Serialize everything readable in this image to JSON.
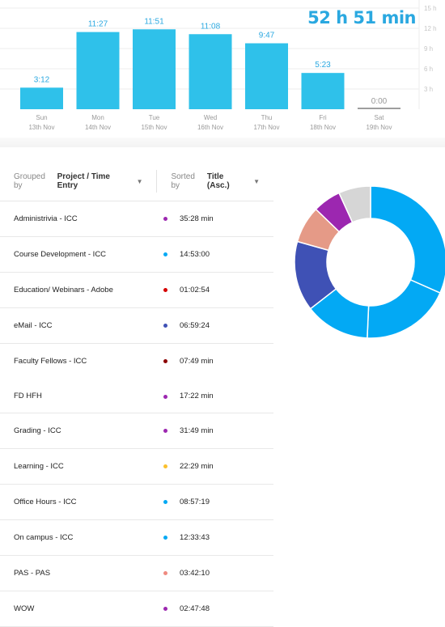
{
  "summary": {
    "total": "52 h 51 min"
  },
  "chart_data": {
    "type": "bar",
    "categories": [
      "Sun",
      "Mon",
      "Tue",
      "Wed",
      "Thu",
      "Fri",
      "Sat"
    ],
    "dates": [
      "13th Nov",
      "14th Nov",
      "15th Nov",
      "16th Nov",
      "17th Nov",
      "18th Nov",
      "19th Nov"
    ],
    "values": [
      3.2,
      11.45,
      11.85,
      11.13,
      9.78,
      5.38,
      0
    ],
    "value_labels": [
      "3:12",
      "11:27",
      "11:51",
      "11:08",
      "9:47",
      "5:23",
      "0:00"
    ],
    "yticks": [
      "3 h",
      "6 h",
      "9 h",
      "12 h",
      "15 h"
    ],
    "ytick_values": [
      3,
      6,
      9,
      12,
      15
    ],
    "ylim": [
      0,
      15
    ],
    "bar_color": "#2fc1ea",
    "zero_color": "#9e9e9e",
    "grid": true
  },
  "controls": {
    "group_label": "Grouped by",
    "group_value": "Project / Time Entry",
    "sort_label": "Sorted by",
    "sort_value": "Title (Asc.)"
  },
  "entries": [
    {
      "title": "Administrivia - ICC",
      "duration": "35:28 min",
      "color": "#9c27b0"
    },
    {
      "title": "Course Development - ICC",
      "duration": "14:53:00",
      "color": "#03a9f4"
    },
    {
      "title": "Education/ Webinars - Adobe",
      "duration": "01:02:54",
      "color": "#d50000"
    },
    {
      "title": "eMail - ICC",
      "duration": "06:59:24",
      "color": "#3f51b5"
    },
    {
      "title": "Faculty Fellows - ICC",
      "duration": "07:49 min",
      "color": "#8b0000"
    },
    {
      "title": "FD HFH",
      "duration": "17:22 min",
      "color": "#9c27b0"
    },
    {
      "title": "Grading - ICC",
      "duration": "31:49 min",
      "color": "#9c27b0"
    },
    {
      "title": "Learning - ICC",
      "duration": "22:29 min",
      "color": "#fbc02d"
    },
    {
      "title": "Office Hours - ICC",
      "duration": "08:57:19",
      "color": "#03a9f4"
    },
    {
      "title": "On campus - ICC",
      "duration": "12:33:43",
      "color": "#03a9f4"
    },
    {
      "title": "PAS - PAS",
      "duration": "03:42:10",
      "color": "#ef8a80"
    },
    {
      "title": "WOW",
      "duration": "02:47:48",
      "color": "#9c27b0"
    }
  ],
  "donut": {
    "segments": [
      {
        "value": 14.88,
        "color": "#03a9f4"
      },
      {
        "value": 8.96,
        "color": "#03a9f4"
      },
      {
        "value": 6.49,
        "color": "#03a9f4"
      },
      {
        "value": 6.99,
        "color": "#3f51b5"
      },
      {
        "value": 3.7,
        "color": "#e59a87"
      },
      {
        "value": 2.8,
        "color": "#9c27b0"
      },
      {
        "value": 3.2,
        "color": "#d6d6d6"
      }
    ]
  }
}
